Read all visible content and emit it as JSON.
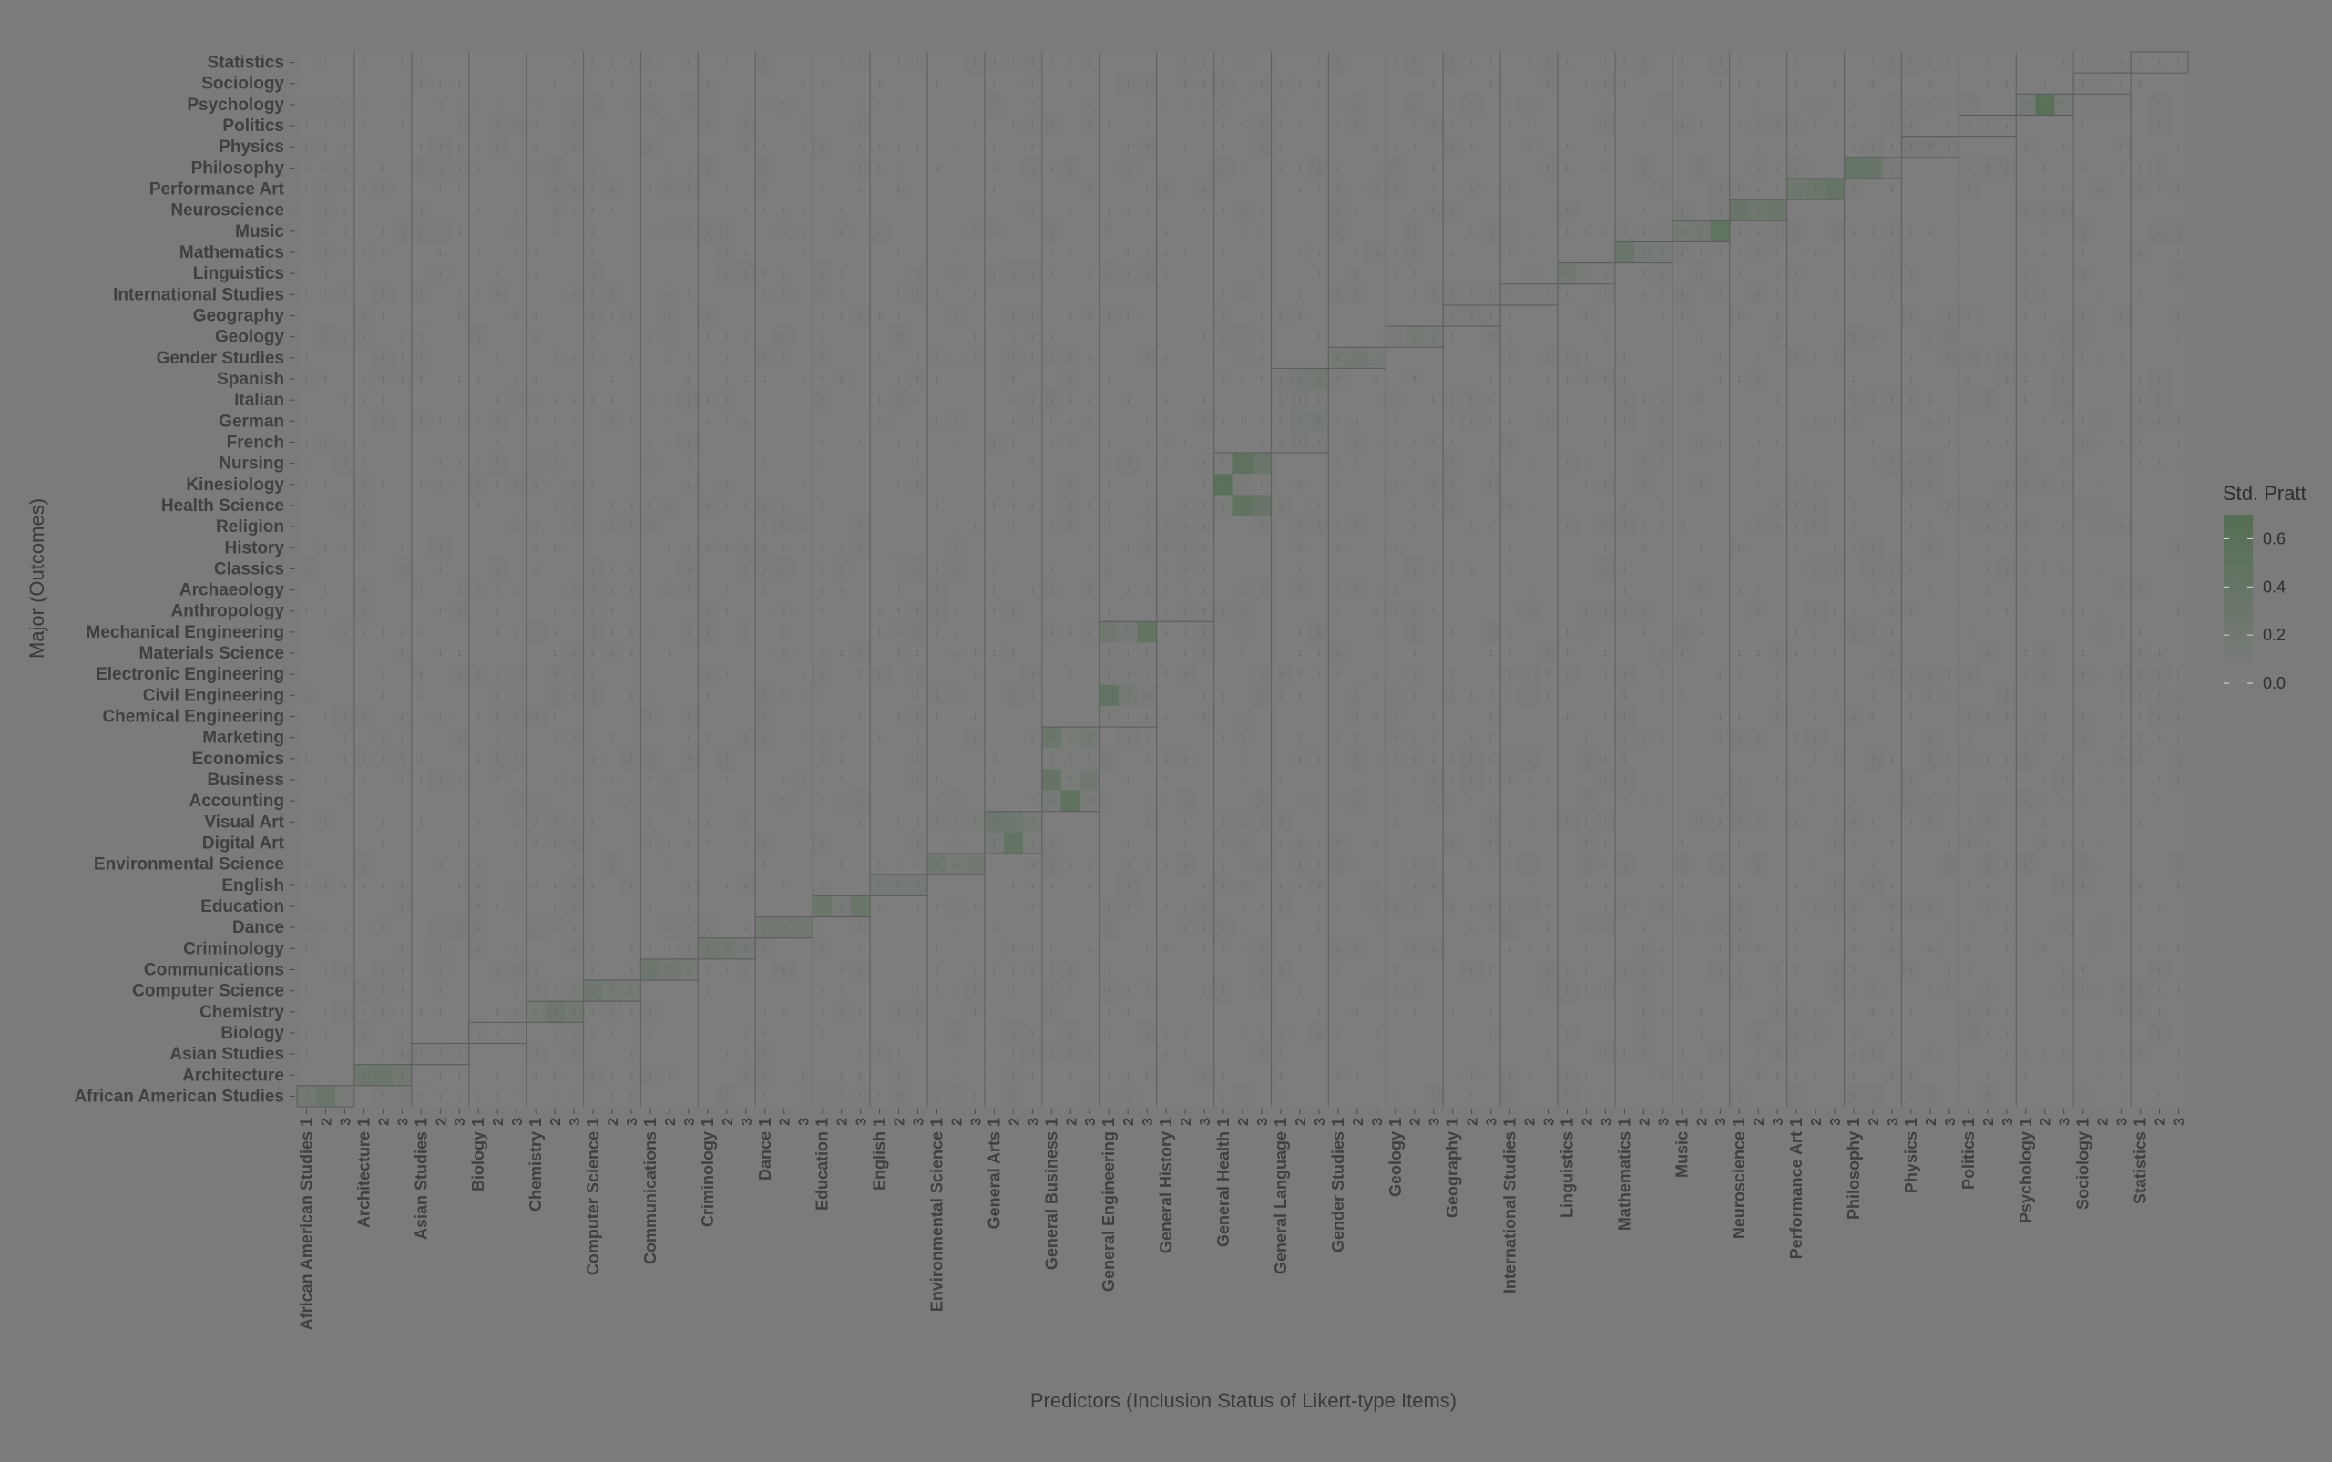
{
  "chart_data": {
    "type": "heatmap",
    "xlabel": "Predictors (Inclusion Status of Likert-type Items)",
    "ylabel": "Major (Outcomes)",
    "legend": {
      "title": "Std. Pratt",
      "ticks": [
        0.0,
        0.2,
        0.4,
        0.6
      ],
      "tick_labels": [
        "0.0",
        "0.2",
        "0.4",
        "0.6"
      ],
      "range": [
        0,
        0.7
      ],
      "low_color": "#7d7d7d",
      "high_color": "#546e54",
      "placement": "right"
    },
    "predictor_groups": [
      "African American Studies",
      "Architecture",
      "Asian Studies",
      "Biology",
      "Chemistry",
      "Computer Science",
      "Communications",
      "Criminology",
      "Dance",
      "Education",
      "English",
      "Environmental Science",
      "General Arts",
      "General Business",
      "General Engineering",
      "General History",
      "General Health",
      "General Language",
      "Gender Studies",
      "Geology",
      "Geography",
      "International Studies",
      "Linguistics",
      "Mathematics",
      "Music",
      "Neuroscience",
      "Performance Art",
      "Philosophy",
      "Physics",
      "Politics",
      "Psychology",
      "Sociology",
      "Statistics"
    ],
    "item_levels": [
      "1",
      "2",
      "3"
    ],
    "outcomes": [
      "Statistics",
      "Sociology",
      "Psychology",
      "Politics",
      "Physics",
      "Philosophy",
      "Performance Art",
      "Neuroscience",
      "Music",
      "Mathematics",
      "Linguistics",
      "International Studies",
      "Geography",
      "Geology",
      "Gender Studies",
      "Spanish",
      "Italian",
      "German",
      "French",
      "Nursing",
      "Kinesiology",
      "Health Science",
      "Religion",
      "History",
      "Classics",
      "Archaeology",
      "Anthropology",
      "Mechanical Engineering",
      "Materials Science",
      "Electronic Engineering",
      "Civil Engineering",
      "Chemical Engineering",
      "Marketing",
      "Economics",
      "Business",
      "Accounting",
      "Visual Art",
      "Digital Art",
      "Environmental Science",
      "English",
      "Education",
      "Dance",
      "Criminology",
      "Communications",
      "Computer Science",
      "Chemistry",
      "Biology",
      "Asian Studies",
      "Architecture",
      "African American Studies"
    ],
    "group_blocks": [
      {
        "predictor": "African American Studies",
        "outcomes": [
          "African American Studies"
        ],
        "values": [
          [
            0.21,
            0.34,
            0.08
          ]
        ]
      },
      {
        "predictor": "Architecture",
        "outcomes": [
          "Architecture"
        ],
        "values": [
          [
            0.28,
            0.33,
            0.22
          ]
        ]
      },
      {
        "predictor": "Asian Studies",
        "outcomes": [
          "Asian Studies"
        ],
        "values": [
          [
            0.05,
            0.06,
            0.04
          ]
        ]
      },
      {
        "predictor": "Biology",
        "outcomes": [
          "Biology"
        ],
        "values": [
          [
            0.03,
            0.02,
            0.02
          ]
        ]
      },
      {
        "predictor": "Chemistry",
        "outcomes": [
          "Chemistry"
        ],
        "values": [
          [
            0.14,
            0.27,
            0.21
          ]
        ]
      },
      {
        "predictor": "Computer Science",
        "outcomes": [
          "Computer Science"
        ],
        "values": [
          [
            0.24,
            0.17,
            0.13
          ]
        ]
      },
      {
        "predictor": "Communications",
        "outcomes": [
          "Communications"
        ],
        "values": [
          [
            0.26,
            0.19,
            0.13
          ]
        ]
      },
      {
        "predictor": "Criminology",
        "outcomes": [
          "Criminology"
        ],
        "values": [
          [
            0.23,
            0.2,
            0.12
          ]
        ]
      },
      {
        "predictor": "Dance",
        "outcomes": [
          "Dance"
        ],
        "values": [
          [
            0.21,
            0.22,
            0.18
          ]
        ]
      },
      {
        "predictor": "Education",
        "outcomes": [
          "Education"
        ],
        "values": [
          [
            0.3,
            0.1,
            0.33
          ]
        ]
      },
      {
        "predictor": "English",
        "outcomes": [
          "English"
        ],
        "values": [
          [
            0.11,
            0.12,
            0.12
          ]
        ]
      },
      {
        "predictor": "Environmental Science",
        "outcomes": [
          "Environmental Science"
        ],
        "values": [
          [
            0.24,
            0.17,
            0.19
          ]
        ]
      },
      {
        "predictor": "General Arts",
        "outcomes": [
          "Visual Art",
          "Digital Art"
        ],
        "values": [
          [
            0.28,
            0.24,
            0.15
          ],
          [
            0.1,
            0.42,
            0.05
          ]
        ]
      },
      {
        "predictor": "General Business",
        "outcomes": [
          "Marketing",
          "Economics",
          "Business",
          "Accounting"
        ],
        "values": [
          [
            0.3,
            0.09,
            0.16
          ],
          [
            0.07,
            0.05,
            0.06
          ],
          [
            0.4,
            0.07,
            0.19
          ],
          [
            0.1,
            0.52,
            0.08
          ]
        ]
      },
      {
        "predictor": "General Engineering",
        "outcomes": [
          "Mechanical Engineering",
          "Materials Science",
          "Electronic Engineering",
          "Civil Engineering",
          "Chemical Engineering"
        ],
        "values": [
          [
            0.22,
            0.12,
            0.44
          ],
          [
            0.04,
            0.04,
            0.03
          ],
          [
            0.05,
            0.05,
            0.04
          ],
          [
            0.45,
            0.15,
            0.08
          ],
          [
            0.05,
            0.04,
            0.03
          ]
        ]
      },
      {
        "predictor": "General History",
        "outcomes": [
          "Religion",
          "History",
          "Classics",
          "Archaeology",
          "Anthropology"
        ],
        "values": [
          [
            0.03,
            0.03,
            0.03
          ],
          [
            0.03,
            0.04,
            0.02
          ],
          [
            0.02,
            0.03,
            0.02
          ],
          [
            0.02,
            0.02,
            0.02
          ],
          [
            0.02,
            0.03,
            0.02
          ]
        ]
      },
      {
        "predictor": "General Health",
        "outcomes": [
          "Nursing",
          "Kinesiology",
          "Health Science"
        ],
        "values": [
          [
            0.04,
            0.52,
            0.31
          ],
          [
            0.6,
            0.06,
            0.04
          ],
          [
            0.07,
            0.5,
            0.36
          ]
        ]
      },
      {
        "predictor": "General Language",
        "outcomes": [
          "Spanish",
          "Italian",
          "German",
          "French"
        ],
        "values": [
          [
            0.08,
            0.12,
            0.18
          ],
          [
            0.05,
            0.08,
            0.06
          ],
          [
            0.06,
            0.1,
            0.12
          ],
          [
            0.07,
            0.09,
            0.07
          ]
        ]
      },
      {
        "predictor": "Gender Studies",
        "outcomes": [
          "Gender Studies"
        ],
        "values": [
          [
            0.14,
            0.18,
            0.1
          ]
        ]
      },
      {
        "predictor": "Geology",
        "outcomes": [
          "Geology"
        ],
        "values": [
          [
            0.09,
            0.13,
            0.1
          ]
        ]
      },
      {
        "predictor": "Geography",
        "outcomes": [
          "Geography"
        ],
        "values": [
          [
            0.06,
            0.08,
            0.05
          ]
        ]
      },
      {
        "predictor": "International Studies",
        "outcomes": [
          "International Studies"
        ],
        "values": [
          [
            0.05,
            0.06,
            0.04
          ]
        ]
      },
      {
        "predictor": "Linguistics",
        "outcomes": [
          "Linguistics"
        ],
        "values": [
          [
            0.18,
            0.09,
            0.07
          ]
        ]
      },
      {
        "predictor": "Mathematics",
        "outcomes": [
          "Mathematics"
        ],
        "values": [
          [
            0.33,
            0.12,
            0.1
          ]
        ]
      },
      {
        "predictor": "Music",
        "outcomes": [
          "Music"
        ],
        "values": [
          [
            0.15,
            0.21,
            0.48
          ]
        ]
      },
      {
        "predictor": "Neuroscience",
        "outcomes": [
          "Neuroscience"
        ],
        "values": [
          [
            0.36,
            0.25,
            0.3
          ]
        ]
      },
      {
        "predictor": "Performance Art",
        "outcomes": [
          "Performance Art"
        ],
        "values": [
          [
            0.24,
            0.3,
            0.4
          ]
        ]
      },
      {
        "predictor": "Philosophy",
        "outcomes": [
          "Philosophy"
        ],
        "values": [
          [
            0.4,
            0.36,
            0.09
          ]
        ]
      },
      {
        "predictor": "Physics",
        "outcomes": [
          "Physics"
        ],
        "values": [
          [
            0.08,
            0.09,
            0.06
          ]
        ]
      },
      {
        "predictor": "Politics",
        "outcomes": [
          "Politics"
        ],
        "values": [
          [
            0.04,
            0.04,
            0.03
          ]
        ]
      },
      {
        "predictor": "Psychology",
        "outcomes": [
          "Psychology"
        ],
        "values": [
          [
            0.12,
            0.62,
            0.1
          ]
        ]
      },
      {
        "predictor": "Sociology",
        "outcomes": [
          "Sociology"
        ],
        "values": [
          [
            0.03,
            0.03,
            0.02
          ]
        ]
      },
      {
        "predictor": "Statistics",
        "outcomes": [
          "Statistics"
        ],
        "values": [
          [
            0.02,
            0.02,
            0.02
          ]
        ]
      }
    ]
  }
}
